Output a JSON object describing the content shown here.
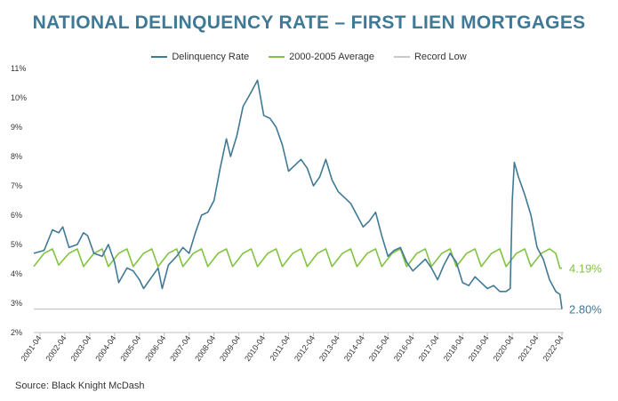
{
  "chart_data": {
    "type": "line",
    "title": "NATIONAL DELINQUENCY RATE – FIRST LIEN MORTGAGES",
    "source": "Source: Black Knight McDash",
    "xlabel": "",
    "ylabel": "",
    "ylim": [
      2,
      11
    ],
    "y_ticks": [
      "2%",
      "3%",
      "4%",
      "5%",
      "6%",
      "7%",
      "8%",
      "9%",
      "10%",
      "11%"
    ],
    "x_ticks": [
      "2001-04",
      "2002-04",
      "2003-04",
      "2004-04",
      "2005-04",
      "2006-04",
      "2007-04",
      "2008-04",
      "2009-04",
      "2010-04",
      "2011-04",
      "2012-04",
      "2013-04",
      "2014-04",
      "2015-04",
      "2016-04",
      "2017-04",
      "2018-04",
      "2019-04",
      "2020-04",
      "2021-04",
      "2022-04"
    ],
    "legend_position": "top",
    "grid": false,
    "series": [
      {
        "name": "Delinquency Rate",
        "color": "#3f7995",
        "end_label": "2.80%",
        "points": [
          [
            "2001-01",
            4.7
          ],
          [
            "2001-06",
            4.8
          ],
          [
            "2001-10",
            5.5
          ],
          [
            "2002-01",
            5.4
          ],
          [
            "2002-03",
            5.6
          ],
          [
            "2002-06",
            4.9
          ],
          [
            "2002-10",
            5.0
          ],
          [
            "2003-01",
            5.4
          ],
          [
            "2003-03",
            5.3
          ],
          [
            "2003-06",
            4.7
          ],
          [
            "2003-10",
            4.6
          ],
          [
            "2004-01",
            5.0
          ],
          [
            "2004-04",
            4.4
          ],
          [
            "2004-06",
            3.7
          ],
          [
            "2004-10",
            4.2
          ],
          [
            "2005-01",
            4.1
          ],
          [
            "2005-04",
            3.8
          ],
          [
            "2005-06",
            3.5
          ],
          [
            "2005-10",
            3.9
          ],
          [
            "2006-01",
            4.2
          ],
          [
            "2006-03",
            3.5
          ],
          [
            "2006-06",
            4.3
          ],
          [
            "2006-10",
            4.6
          ],
          [
            "2007-01",
            4.9
          ],
          [
            "2007-04",
            4.7
          ],
          [
            "2007-07",
            5.4
          ],
          [
            "2007-10",
            6.0
          ],
          [
            "2008-01",
            6.1
          ],
          [
            "2008-04",
            6.5
          ],
          [
            "2008-07",
            7.6
          ],
          [
            "2008-10",
            8.6
          ],
          [
            "2008-12",
            8.0
          ],
          [
            "2009-03",
            8.7
          ],
          [
            "2009-06",
            9.7
          ],
          [
            "2009-10",
            10.2
          ],
          [
            "2010-01",
            10.6
          ],
          [
            "2010-04",
            9.4
          ],
          [
            "2010-07",
            9.3
          ],
          [
            "2010-10",
            9.0
          ],
          [
            "2011-01",
            8.4
          ],
          [
            "2011-04",
            7.5
          ],
          [
            "2011-07",
            7.7
          ],
          [
            "2011-10",
            7.9
          ],
          [
            "2012-01",
            7.6
          ],
          [
            "2012-04",
            7.0
          ],
          [
            "2012-07",
            7.3
          ],
          [
            "2012-10",
            7.9
          ],
          [
            "2013-01",
            7.2
          ],
          [
            "2013-04",
            6.8
          ],
          [
            "2013-07",
            6.6
          ],
          [
            "2013-10",
            6.4
          ],
          [
            "2014-01",
            6.0
          ],
          [
            "2014-04",
            5.6
          ],
          [
            "2014-07",
            5.8
          ],
          [
            "2014-10",
            6.1
          ],
          [
            "2015-01",
            5.3
          ],
          [
            "2015-04",
            4.6
          ],
          [
            "2015-07",
            4.8
          ],
          [
            "2015-10",
            4.9
          ],
          [
            "2016-01",
            4.4
          ],
          [
            "2016-04",
            4.1
          ],
          [
            "2016-07",
            4.3
          ],
          [
            "2016-10",
            4.5
          ],
          [
            "2017-01",
            4.2
          ],
          [
            "2017-04",
            3.8
          ],
          [
            "2017-07",
            4.3
          ],
          [
            "2017-10",
            4.7
          ],
          [
            "2018-01",
            4.4
          ],
          [
            "2018-04",
            3.7
          ],
          [
            "2018-07",
            3.6
          ],
          [
            "2018-10",
            3.9
          ],
          [
            "2019-01",
            3.7
          ],
          [
            "2019-04",
            3.5
          ],
          [
            "2019-07",
            3.6
          ],
          [
            "2019-10",
            3.4
          ],
          [
            "2020-01",
            3.4
          ],
          [
            "2020-03",
            3.5
          ],
          [
            "2020-04",
            6.5
          ],
          [
            "2020-05",
            7.8
          ],
          [
            "2020-07",
            7.3
          ],
          [
            "2020-10",
            6.7
          ],
          [
            "2021-01",
            6.0
          ],
          [
            "2021-04",
            4.9
          ],
          [
            "2021-07",
            4.5
          ],
          [
            "2021-10",
            3.8
          ],
          [
            "2022-01",
            3.4
          ],
          [
            "2022-03",
            3.3
          ],
          [
            "2022-04",
            2.8
          ]
        ]
      },
      {
        "name": "2000-2005 Average",
        "color": "#82c341",
        "end_label": "4.19%",
        "points": [
          [
            "2001-01",
            4.25
          ],
          [
            "2001-06",
            4.7
          ],
          [
            "2001-10",
            4.85
          ],
          [
            "2002-01",
            4.3
          ],
          [
            "2002-06",
            4.7
          ],
          [
            "2002-10",
            4.85
          ],
          [
            "2003-01",
            4.25
          ],
          [
            "2003-06",
            4.7
          ],
          [
            "2003-10",
            4.85
          ],
          [
            "2004-01",
            4.25
          ],
          [
            "2004-06",
            4.7
          ],
          [
            "2004-10",
            4.85
          ],
          [
            "2005-01",
            4.25
          ],
          [
            "2005-06",
            4.7
          ],
          [
            "2005-10",
            4.85
          ],
          [
            "2006-01",
            4.25
          ],
          [
            "2006-06",
            4.7
          ],
          [
            "2006-10",
            4.85
          ],
          [
            "2007-01",
            4.25
          ],
          [
            "2007-06",
            4.7
          ],
          [
            "2007-10",
            4.85
          ],
          [
            "2008-01",
            4.25
          ],
          [
            "2008-06",
            4.7
          ],
          [
            "2008-10",
            4.85
          ],
          [
            "2009-01",
            4.25
          ],
          [
            "2009-06",
            4.7
          ],
          [
            "2009-10",
            4.85
          ],
          [
            "2010-01",
            4.25
          ],
          [
            "2010-06",
            4.7
          ],
          [
            "2010-10",
            4.85
          ],
          [
            "2011-01",
            4.25
          ],
          [
            "2011-06",
            4.7
          ],
          [
            "2011-10",
            4.85
          ],
          [
            "2012-01",
            4.25
          ],
          [
            "2012-06",
            4.7
          ],
          [
            "2012-10",
            4.85
          ],
          [
            "2013-01",
            4.25
          ],
          [
            "2013-06",
            4.7
          ],
          [
            "2013-10",
            4.85
          ],
          [
            "2014-01",
            4.25
          ],
          [
            "2014-06",
            4.7
          ],
          [
            "2014-10",
            4.85
          ],
          [
            "2015-01",
            4.25
          ],
          [
            "2015-06",
            4.7
          ],
          [
            "2015-10",
            4.85
          ],
          [
            "2016-01",
            4.25
          ],
          [
            "2016-06",
            4.7
          ],
          [
            "2016-10",
            4.85
          ],
          [
            "2017-01",
            4.25
          ],
          [
            "2017-06",
            4.7
          ],
          [
            "2017-10",
            4.85
          ],
          [
            "2018-01",
            4.25
          ],
          [
            "2018-06",
            4.7
          ],
          [
            "2018-10",
            4.85
          ],
          [
            "2019-01",
            4.25
          ],
          [
            "2019-06",
            4.7
          ],
          [
            "2019-10",
            4.85
          ],
          [
            "2020-01",
            4.25
          ],
          [
            "2020-06",
            4.7
          ],
          [
            "2020-10",
            4.85
          ],
          [
            "2021-01",
            4.25
          ],
          [
            "2021-06",
            4.7
          ],
          [
            "2021-10",
            4.85
          ],
          [
            "2022-01",
            4.7
          ],
          [
            "2022-03",
            4.19
          ],
          [
            "2022-04",
            4.19
          ]
        ]
      },
      {
        "name": "Record Low",
        "color": "#c8c8c8",
        "points": [
          [
            "2001-01",
            2.8
          ],
          [
            "2022-04",
            2.8
          ]
        ]
      }
    ]
  },
  "colors": {
    "title": "#3f7995",
    "axis": "#bfbfbf"
  }
}
